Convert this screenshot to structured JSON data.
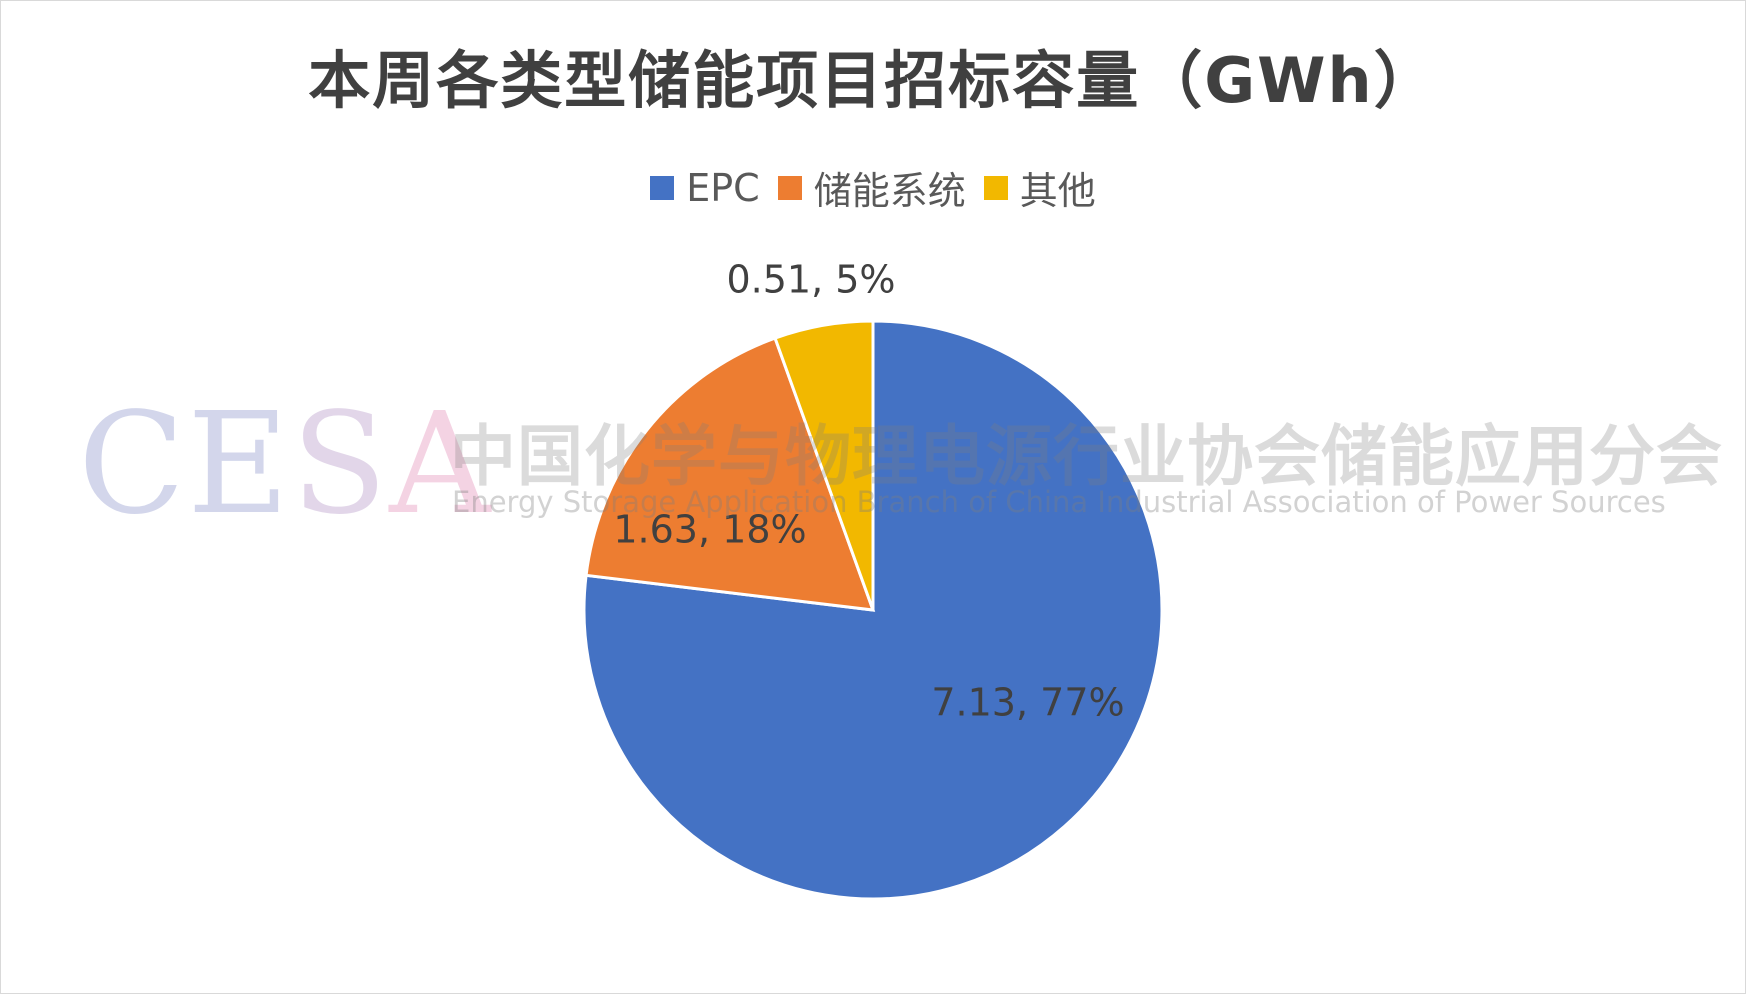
{
  "chart_data": {
    "type": "pie",
    "title": "本周各类型储能项目招标容量（GWh）",
    "legend_position": "top",
    "categories": [
      "EPC",
      "储能系统",
      "其他"
    ],
    "values": [
      7.13,
      1.63,
      0.51
    ],
    "percent_labels": [
      "77%",
      "18%",
      "5%"
    ],
    "data_labels": [
      "7.13, 77%",
      "1.63, 18%",
      "0.51, 5%"
    ],
    "colors": [
      "#4472C4",
      "#ED7D31",
      "#F2B800"
    ]
  },
  "watermark": {
    "logo_text": "CESA",
    "org_cn": "中国化学与物理电源行业协会储能应用分会",
    "org_en": "Energy Storage Application Branch of China Industrial Association of Power Sources"
  }
}
